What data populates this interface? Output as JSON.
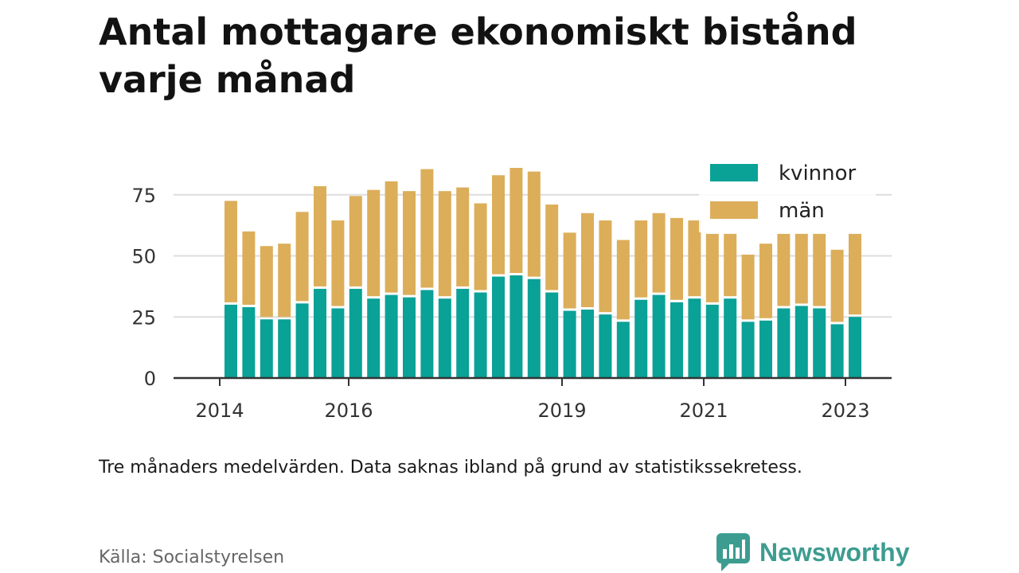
{
  "header": {
    "title": "Antal mottagare ekonomiskt bistånd varje månad"
  },
  "footer": {
    "note": "Tre månaders medelvärden. Data saknas ibland på grund av statistikssekretess.",
    "source": "Källa: Socialstyrelsen",
    "brand": "Newsworthy"
  },
  "colors": {
    "kvinnor": "#0aa197",
    "man": "#dcae5a",
    "grid": "#dddddd",
    "axis": "#333333",
    "brand": "#3d9c90"
  },
  "chart_data": {
    "type": "bar",
    "stacked": true,
    "title": "Antal mottagare ekonomiskt bistånd varje månad",
    "xlabel": "",
    "ylabel": "",
    "ylim": [
      0,
      90
    ],
    "yticks": [
      0,
      25,
      50,
      75
    ],
    "grid": true,
    "legend_position": "top-right",
    "xticks": [
      "2014",
      "2016",
      "2019",
      "2021",
      "2023"
    ],
    "x": [
      "2014-Q2",
      "2014-Q3",
      "2014-Q4",
      "2015-Q1",
      "2015-Q2",
      "2015-Q3",
      "2015-Q4",
      "2016-Q1",
      "2016-Q2",
      "2016-Q3",
      "2016-Q4",
      "2017-Q1",
      "2017-Q2",
      "2017-Q3",
      "2017-Q4",
      "2018-Q1",
      "2018-Q2",
      "2018-Q3",
      "2018-Q4",
      "2019-Q1",
      "2019-Q2",
      "2019-Q3",
      "2019-Q4",
      "2020-Q1",
      "2020-Q2",
      "2020-Q3",
      "2020-Q4",
      "2021-Q1",
      "2021-Q2",
      "2021-Q3",
      "2021-Q4",
      "2022-Q1",
      "2022-Q2",
      "2022-Q3",
      "2022-Q4",
      "2023-Q1"
    ],
    "series": [
      {
        "name": "kvinnor",
        "values": [
          30.5,
          29.5,
          24.5,
          24.5,
          31,
          37,
          29,
          37,
          33,
          34.5,
          33.5,
          36.5,
          33,
          37,
          35.5,
          42,
          42.5,
          41,
          35.5,
          28,
          28.5,
          26.5,
          23.5,
          32.5,
          34.5,
          31.5,
          33,
          30.5,
          33,
          23.5,
          24,
          29,
          30,
          29,
          22.5,
          25.5
        ]
      },
      {
        "name": "män",
        "values": [
          42,
          30.5,
          29.5,
          30.5,
          37,
          41.5,
          35.5,
          37.5,
          44,
          46,
          43,
          49,
          43.5,
          41,
          36,
          41,
          43.5,
          43.5,
          35.5,
          31.5,
          39,
          38,
          33,
          32,
          33,
          34,
          31.5,
          28.5,
          26,
          27,
          31,
          30,
          29,
          30,
          30,
          33.5
        ]
      }
    ]
  }
}
